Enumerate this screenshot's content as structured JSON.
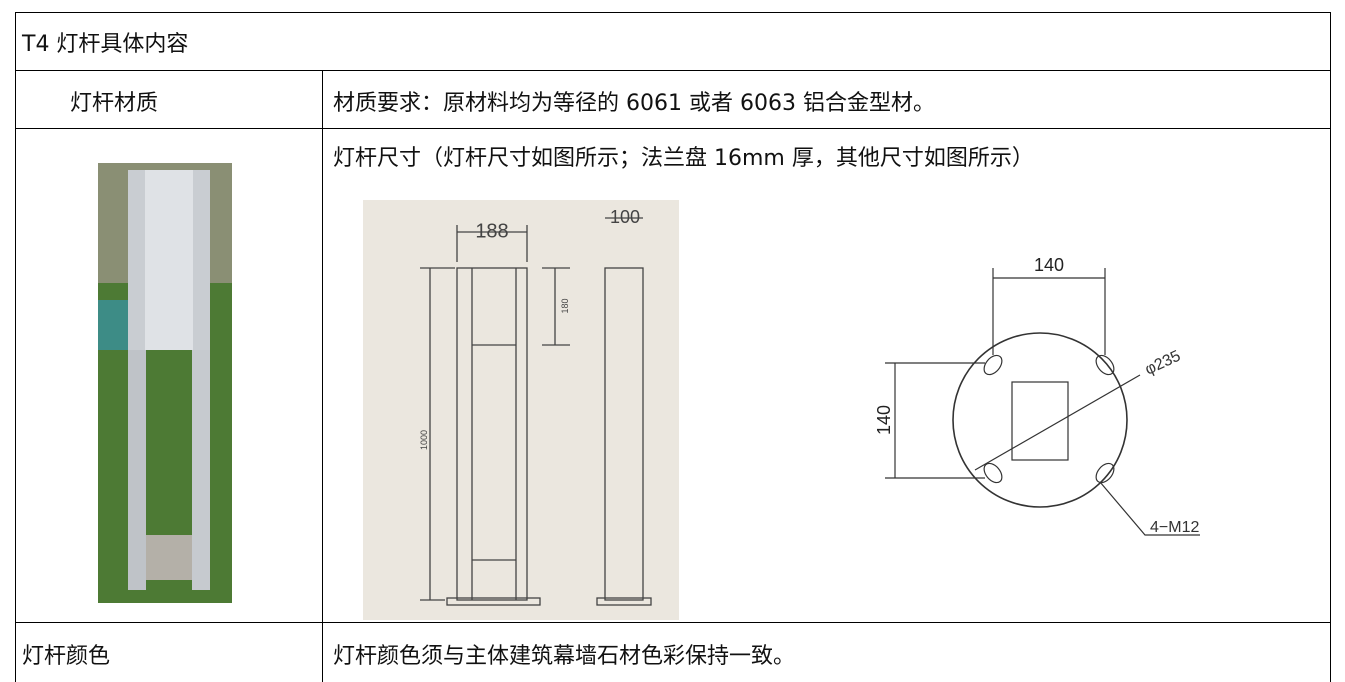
{
  "header": {
    "title": "T4 灯杆具体内容"
  },
  "table": {
    "rows": [
      {
        "label": "灯杆材质",
        "content": "材质要求：原材料均为等径的 6061 或者 6063 铝合金型材。"
      },
      {
        "content": "灯杆尺寸（灯杆尺寸如图所示；法兰盘 16mm 厚，其他尺寸如图所示）",
        "front_drawing": {
          "width": "188",
          "side_width": "100",
          "window_height": "180",
          "height": "1000"
        },
        "flange_drawing": {
          "hole_spacing_x": "140",
          "hole_spacing_y": "140",
          "diameter": "φ235",
          "bolts": "4−M12"
        }
      },
      {
        "label": "灯杆颜色",
        "content": "灯杆颜色须与主体建筑幕墙石材色彩保持一致。"
      }
    ]
  }
}
